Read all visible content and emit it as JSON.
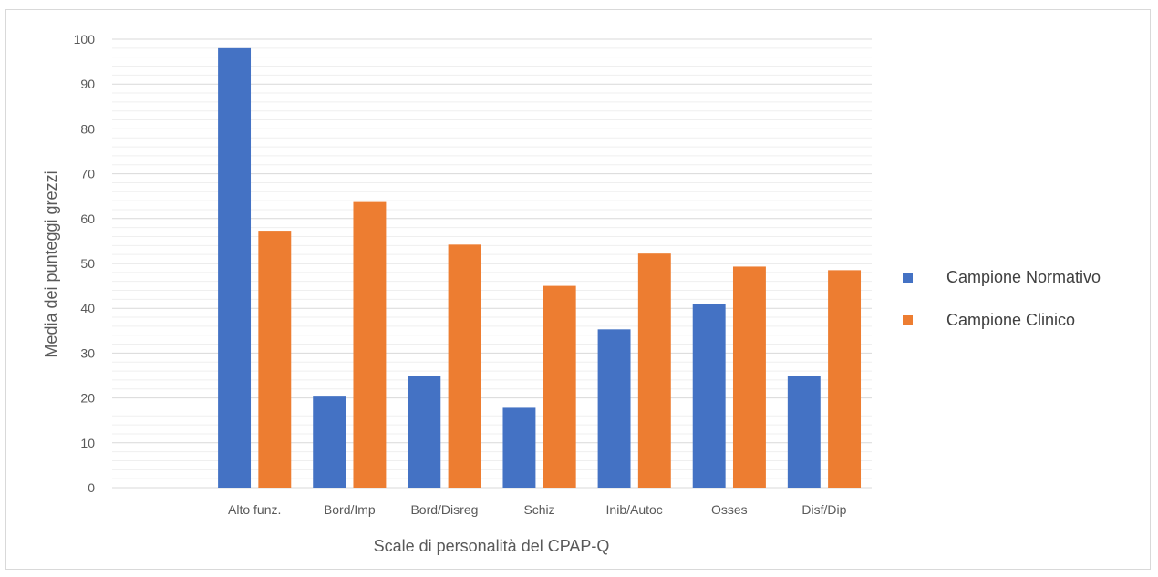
{
  "chart_data": {
    "type": "bar",
    "title": "",
    "xlabel": "Scale di personalità del CPAP-Q",
    "ylabel": "Media dei punteggi grezzi",
    "ylim": [
      0,
      100
    ],
    "ytick_step": 10,
    "grid": true,
    "legend_position": "right",
    "categories": [
      "",
      "Alto funz.",
      "Bord/Imp",
      "Bord/Disreg",
      "Schiz",
      "Inib/Autoc",
      "Osses",
      "Disf/Dip"
    ],
    "series": [
      {
        "name": "Campione Normativo",
        "color": "#4472c4",
        "values": [
          null,
          98,
          20.5,
          24.8,
          17.8,
          35.3,
          41,
          25
        ]
      },
      {
        "name": " Campione Clinico",
        "color": "#ed7d31",
        "values": [
          null,
          57.3,
          63.7,
          54.2,
          45,
          52.2,
          49.3,
          48.5
        ]
      }
    ]
  }
}
